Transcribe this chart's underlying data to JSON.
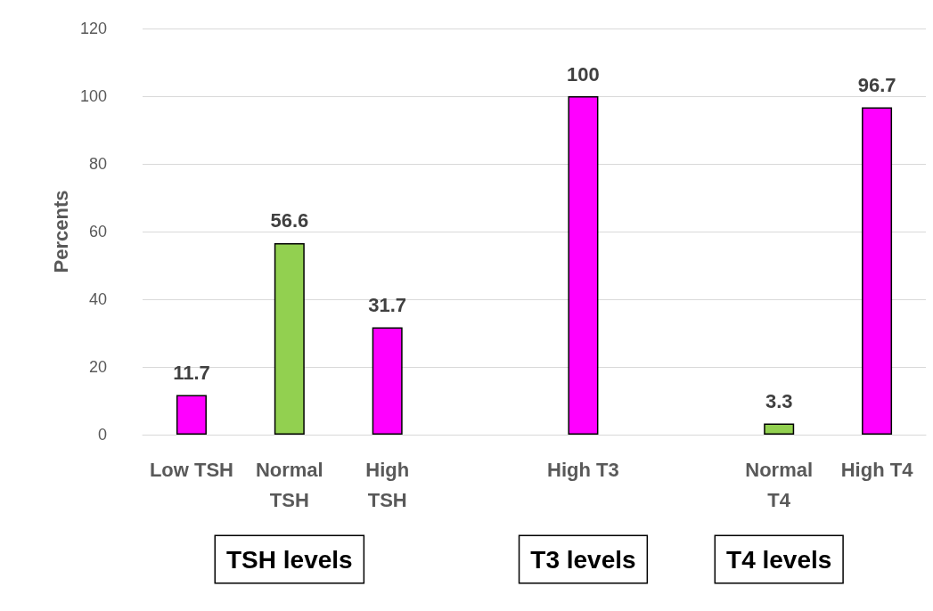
{
  "chart_data": {
    "type": "bar",
    "ylabel": "Percents",
    "categories": [
      "Low TSH",
      "Normal\nTSH",
      "High\nTSH",
      null,
      "High T3",
      null,
      "Normal\nT4",
      "High T4"
    ],
    "values": [
      11.7,
      56.6,
      31.7,
      null,
      100,
      null,
      3.3,
      96.7
    ],
    "colors": [
      "#ff00ff",
      "#92d050",
      "#ff00ff",
      null,
      "#ff00ff",
      null,
      "#92d050",
      "#ff00ff"
    ],
    "ylim": [
      0,
      120
    ],
    "yticks": [
      0,
      20,
      40,
      60,
      80,
      100,
      120
    ],
    "grid": "y",
    "data_labels": true,
    "annotations": [
      "TSH levels",
      "T3 levels",
      "T4 levels"
    ]
  }
}
